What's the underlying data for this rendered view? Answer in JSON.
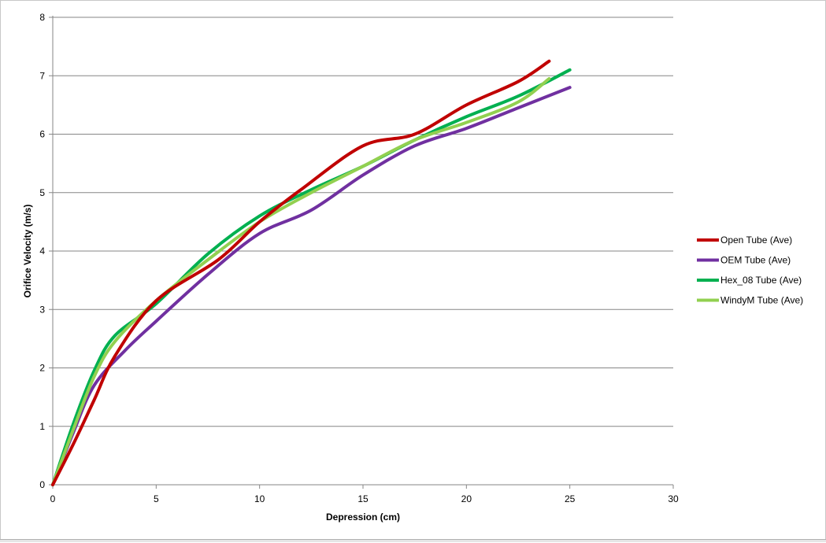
{
  "chart_data": {
    "type": "line",
    "title": "",
    "xlabel": "Depression (cm)",
    "ylabel": "Orifice Velocity (m/s)",
    "xlim": [
      0,
      30
    ],
    "ylim": [
      0,
      8
    ],
    "xticks": [
      0,
      5,
      10,
      15,
      20,
      25,
      30
    ],
    "yticks": [
      0,
      1,
      2,
      3,
      4,
      5,
      6,
      7,
      8
    ],
    "grid": "horizontal",
    "legend_position": "right",
    "series": [
      {
        "name": "Open Tube (Ave)",
        "color": "#c00000",
        "points": [
          [
            0,
            0
          ],
          [
            1,
            0.7
          ],
          [
            2,
            1.45
          ],
          [
            3,
            2.2
          ],
          [
            5,
            3.15
          ],
          [
            8,
            3.85
          ],
          [
            10,
            4.5
          ],
          [
            12,
            5.05
          ],
          [
            15,
            5.8
          ],
          [
            17.5,
            6.0
          ],
          [
            20,
            6.5
          ],
          [
            22.5,
            6.9
          ],
          [
            24,
            7.25
          ]
        ]
      },
      {
        "name": "OEM Tube (Ave)",
        "color": "#7030a0",
        "points": [
          [
            0,
            0
          ],
          [
            1,
            0.9
          ],
          [
            2,
            1.7
          ],
          [
            3.5,
            2.3
          ],
          [
            5,
            2.8
          ],
          [
            7.5,
            3.6
          ],
          [
            10,
            4.3
          ],
          [
            12.5,
            4.7
          ],
          [
            15,
            5.3
          ],
          [
            17.5,
            5.8
          ],
          [
            20,
            6.1
          ],
          [
            22.5,
            6.45
          ],
          [
            25,
            6.8
          ]
        ]
      },
      {
        "name": "Hex_08 Tube (Ave)",
        "color": "#00b050",
        "points": [
          [
            0,
            0
          ],
          [
            1,
            1.05
          ],
          [
            2,
            1.95
          ],
          [
            3,
            2.55
          ],
          [
            5,
            3.1
          ],
          [
            7.5,
            3.95
          ],
          [
            10,
            4.6
          ],
          [
            12.5,
            5.05
          ],
          [
            15,
            5.45
          ],
          [
            17.5,
            5.9
          ],
          [
            20,
            6.3
          ],
          [
            22.5,
            6.65
          ],
          [
            25,
            7.1
          ]
        ]
      },
      {
        "name": "WindyM Tube (Ave)",
        "color": "#92d050",
        "points": [
          [
            0,
            0
          ],
          [
            1,
            0.95
          ],
          [
            2,
            1.85
          ],
          [
            3,
            2.45
          ],
          [
            5,
            3.15
          ],
          [
            7.5,
            3.85
          ],
          [
            10,
            4.5
          ],
          [
            12.5,
            5.0
          ],
          [
            15,
            5.45
          ],
          [
            17.5,
            5.9
          ],
          [
            20,
            6.2
          ],
          [
            22.5,
            6.55
          ],
          [
            24,
            6.95
          ]
        ]
      }
    ]
  }
}
